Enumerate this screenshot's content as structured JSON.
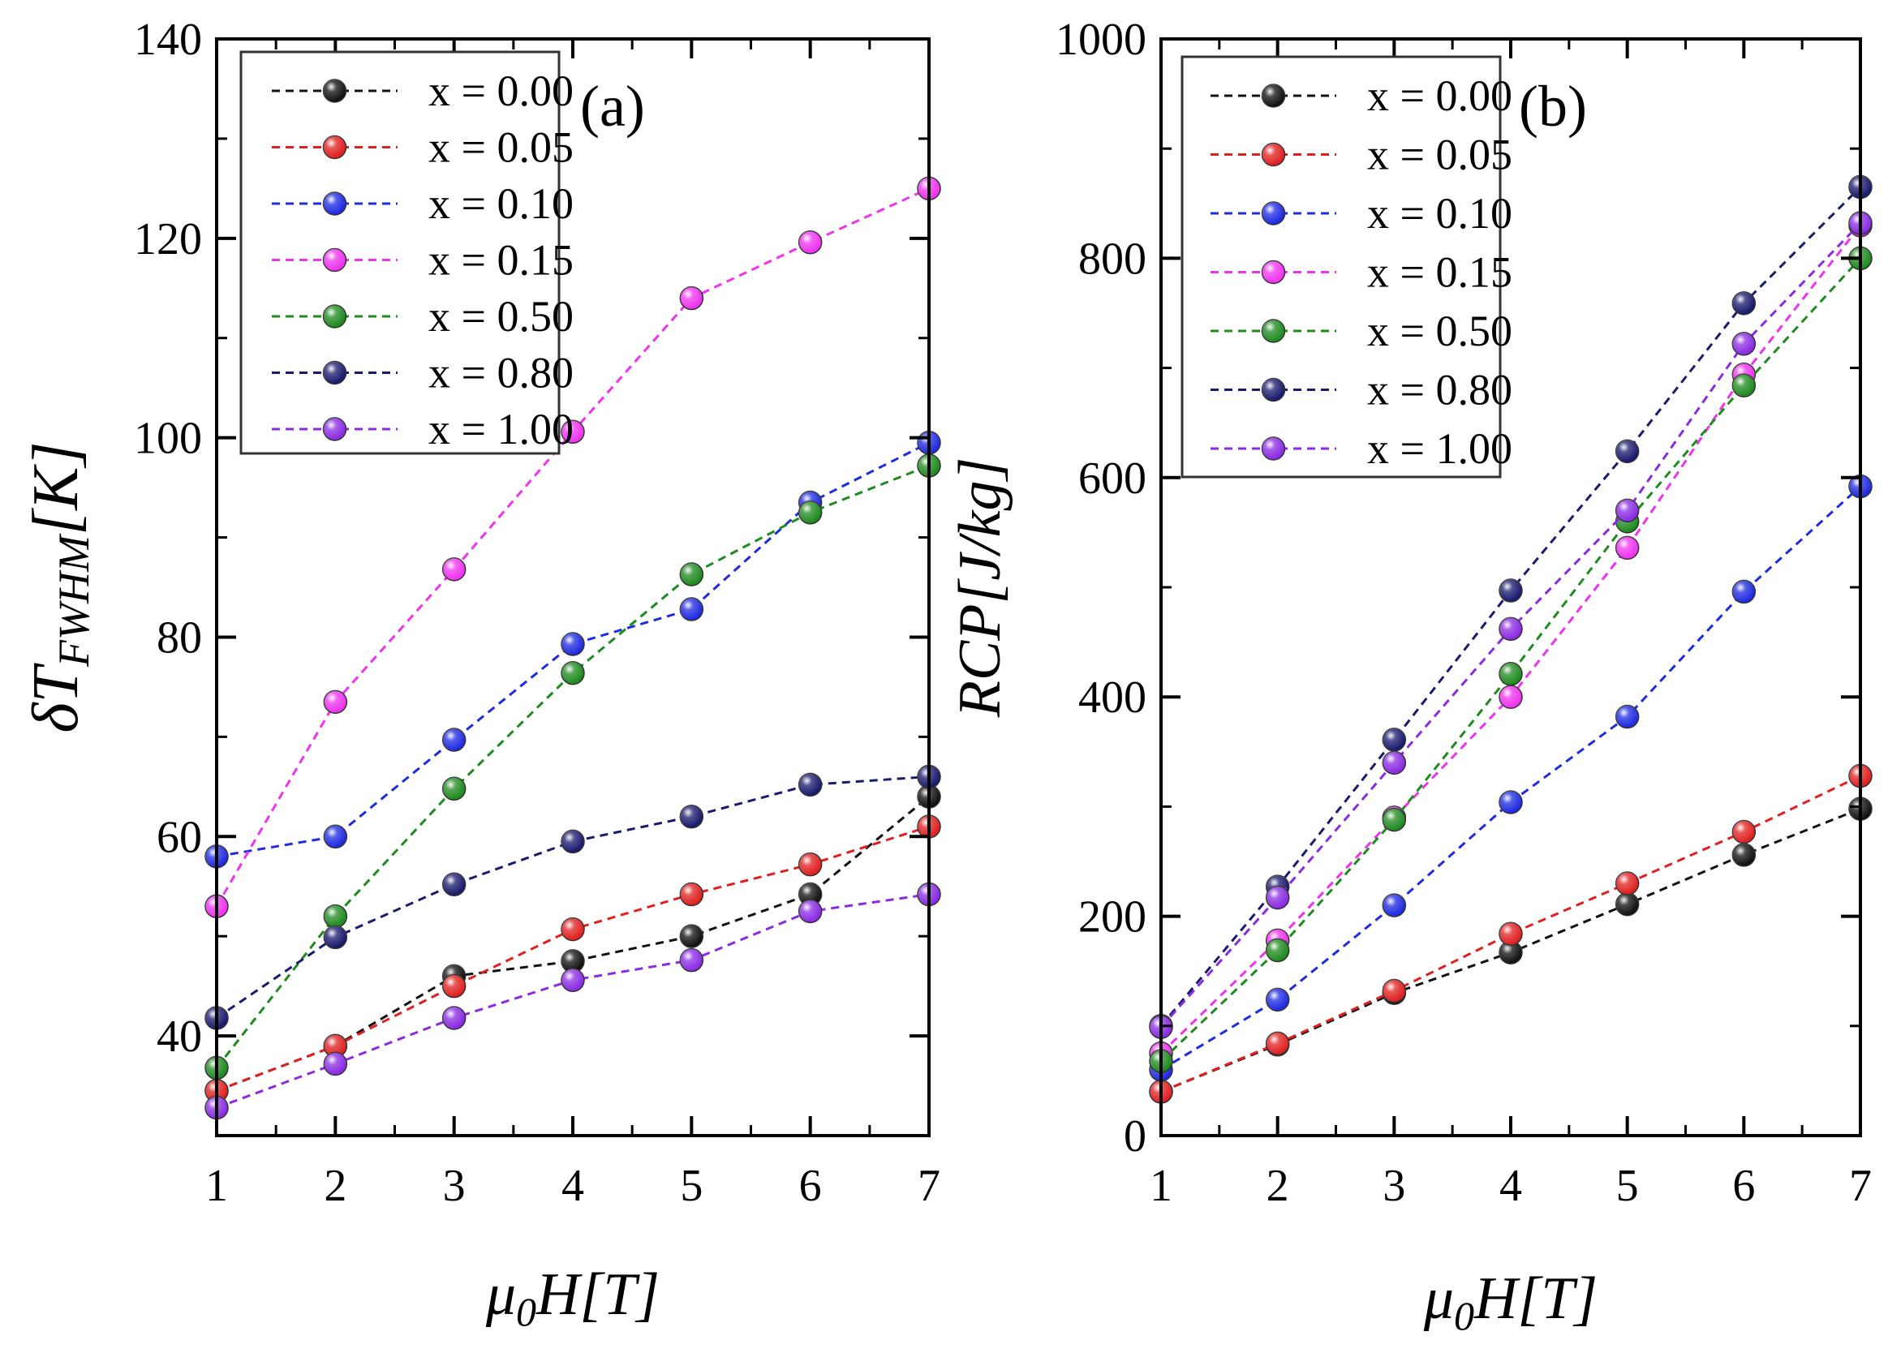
{
  "chart_data": [
    {
      "type": "line",
      "panel_label": "(a)",
      "xlabel_main": "μ",
      "xlabel_sub": "0",
      "xlabel_rest": "H[T]",
      "ylabel_main": "δT",
      "ylabel_sub": "FWHM",
      "ylabel_rest": "[K]",
      "x": [
        1,
        2,
        3,
        4,
        5,
        6,
        7
      ],
      "xlim": [
        1,
        7
      ],
      "ylim": [
        30,
        140
      ],
      "xticks": [
        1,
        2,
        3,
        4,
        5,
        6,
        7
      ],
      "yticks": [
        40,
        60,
        80,
        100,
        120,
        140
      ],
      "grid": false,
      "legend_position": "top-left",
      "series": [
        {
          "name": "x = 0.00",
          "color": "#111111",
          "values": [
            34.5,
            39,
            46,
            47.5,
            50,
            54.2,
            64
          ]
        },
        {
          "name": "x = 0.05",
          "color": "#e02020",
          "values": [
            34.5,
            39,
            45,
            50.7,
            54.2,
            57.2,
            61
          ]
        },
        {
          "name": "x = 0.10",
          "color": "#1f2be0",
          "values": [
            58,
            60,
            69.7,
            79.3,
            82.8,
            93.5,
            99.5
          ]
        },
        {
          "name": "x = 0.15",
          "color": "#ee33ee",
          "values": [
            53,
            73.5,
            86.8,
            100.6,
            114,
            119.6,
            125
          ]
        },
        {
          "name": "x = 0.50",
          "color": "#1f8a1f",
          "values": [
            36.8,
            52,
            64.8,
            76.4,
            86.3,
            92.5,
            97.2
          ]
        },
        {
          "name": "x = 0.80",
          "color": "#1a1a6e",
          "values": [
            41.8,
            49.9,
            55.2,
            59.5,
            62,
            65.2,
            66
          ]
        },
        {
          "name": "x  = 1.00",
          "color": "#8a2be2",
          "values": [
            32.8,
            37.2,
            41.8,
            45.6,
            47.6,
            52.5,
            54.2
          ]
        }
      ]
    },
    {
      "type": "line",
      "panel_label": "(b)",
      "xlabel_main": "μ",
      "xlabel_sub": "0",
      "xlabel_rest": "H[T]",
      "ylabel": "RCP[J/kg]",
      "x": [
        1,
        2,
        3,
        4,
        5,
        6,
        7
      ],
      "xlim": [
        1,
        7
      ],
      "ylim": [
        0,
        1000
      ],
      "xticks": [
        1,
        2,
        3,
        4,
        5,
        6,
        7
      ],
      "yticks": [
        0,
        200,
        400,
        600,
        800,
        1000
      ],
      "grid": false,
      "legend_position": "top-left",
      "series": [
        {
          "name": "x = 0.00",
          "color": "#111111",
          "values": [
            40,
            83,
            130,
            167,
            211,
            256,
            298
          ]
        },
        {
          "name": "x = 0.05",
          "color": "#e02020",
          "values": [
            40,
            84,
            132,
            184,
            230,
            277,
            328
          ]
        },
        {
          "name": "x = 0.10",
          "color": "#1f2be0",
          "values": [
            60,
            124,
            210,
            304,
            382,
            496,
            592
          ]
        },
        {
          "name": "x = 0.15",
          "color": "#ee33ee",
          "values": [
            75,
            178,
            290,
            400,
            536,
            694,
            830
          ]
        },
        {
          "name": "x = 0.50",
          "color": "#1f8a1f",
          "values": [
            68,
            169,
            288,
            421,
            560,
            684,
            800
          ]
        },
        {
          "name": "x = 0.80",
          "color": "#1a1a6e",
          "values": [
            100,
            227,
            361,
            497,
            624,
            759,
            865
          ]
        },
        {
          "name": "x = 1.00",
          "color": "#8a2be2",
          "values": [
            99,
            217,
            340,
            462,
            570,
            722,
            832
          ]
        }
      ]
    }
  ]
}
